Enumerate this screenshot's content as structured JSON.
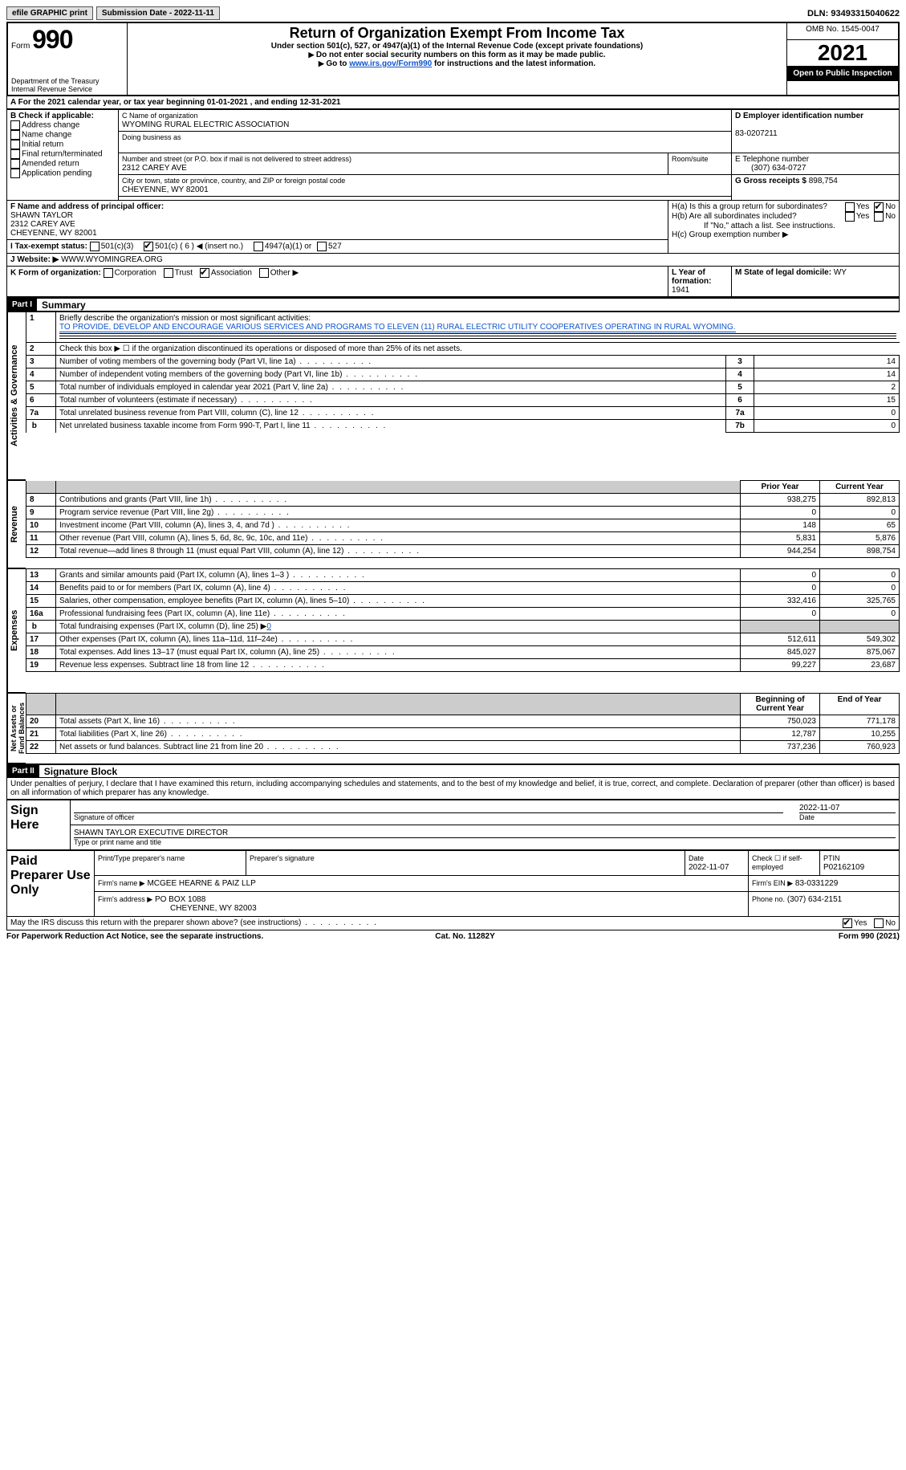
{
  "top": {
    "efile": "efile GRAPHIC print",
    "submission": "Submission Date - 2022-11-11",
    "dln": "DLN: 93493315040622"
  },
  "header": {
    "form_label": "Form",
    "form_num": "990",
    "dept": "Department of the Treasury\nInternal Revenue Service",
    "title": "Return of Organization Exempt From Income Tax",
    "sub1": "Under section 501(c), 527, or 4947(a)(1) of the Internal Revenue Code (except private foundations)",
    "sub2": "Do not enter social security numbers on this form as it may be made public.",
    "sub3_pre": "Go to ",
    "sub3_link": "www.irs.gov/Form990",
    "sub3_post": " for instructions and the latest information.",
    "omb": "OMB No. 1545-0047",
    "year": "2021",
    "open": "Open to Public Inspection"
  },
  "period": "For the 2021 calendar year, or tax year beginning 01-01-2021   , and ending 12-31-2021",
  "boxB": {
    "label": "B Check if applicable:",
    "items": [
      "Address change",
      "Name change",
      "Initial return",
      "Final return/terminated",
      "Amended return",
      "Application pending"
    ]
  },
  "boxC": {
    "label": "C Name of organization",
    "org": "WYOMING RURAL ELECTRIC ASSOCIATION",
    "dba_label": "Doing business as",
    "street_label": "Number and street (or P.O. box if mail is not delivered to street address)",
    "room_label": "Room/suite",
    "street": "2312 CAREY AVE",
    "city_label": "City or town, state or province, country, and ZIP or foreign postal code",
    "city": "CHEYENNE, WY  82001"
  },
  "boxD": {
    "label": "D Employer identification number",
    "ein": "83-0207211"
  },
  "boxE": {
    "label": "E Telephone number",
    "phone": "(307) 634-0727"
  },
  "boxG": {
    "label": "G Gross receipts $",
    "amount": "898,754"
  },
  "boxF": {
    "label": "F  Name and address of principal officer:",
    "name": "SHAWN TAYLOR",
    "street": "2312 CAREY AVE",
    "city": "CHEYENNE, WY  82001"
  },
  "boxH": {
    "a": "H(a)  Is this a group return for subordinates?",
    "b": "H(b)  Are all subordinates included?",
    "note": "If \"No,\" attach a list. See instructions.",
    "c": "H(c)  Group exemption number ▶"
  },
  "boxI": {
    "label": "I  Tax-exempt status:",
    "opt1": "501(c)(3)",
    "opt2": "501(c) ( 6 ) ◀ (insert no.)",
    "opt3": "4947(a)(1) or",
    "opt4": "527"
  },
  "boxJ": {
    "label": "J  Website: ▶",
    "value": "WWW.WYOMINGREA.ORG"
  },
  "boxK": {
    "label": "K Form of organization:",
    "opts": [
      "Corporation",
      "Trust",
      "Association",
      "Other ▶"
    ]
  },
  "boxL": {
    "label": "L Year of formation:",
    "value": "1941"
  },
  "boxM": {
    "label": "M State of legal domicile:",
    "value": "WY"
  },
  "partI": {
    "header": "Part I",
    "title": "Summary",
    "line1_label": "Briefly describe the organization's mission or most significant activities:",
    "line1_text": "TO PROVIDE, DEVELOP AND ENCOURAGE VARIOUS SERVICES AND PROGRAMS TO ELEVEN (11) RURAL ELECTRIC UTILITY COOPERATIVES OPERATING IN RURAL WYOMING.",
    "lines": {
      "2": "Check this box ▶ ☐  if the organization discontinued its operations or disposed of more than 25% of its net assets.",
      "3": "Number of voting members of the governing body (Part VI, line 1a)",
      "4": "Number of independent voting members of the governing body (Part VI, line 1b)",
      "5": "Total number of individuals employed in calendar year 2021 (Part V, line 2a)",
      "6": "Total number of volunteers (estimate if necessary)",
      "7a": "Total unrelated business revenue from Part VIII, column (C), line 12",
      "7b": "Net unrelated business taxable income from Form 990-T, Part I, line 11"
    },
    "vals": {
      "3": "14",
      "4": "14",
      "5": "2",
      "6": "15",
      "7a": "0",
      "7b": "0"
    },
    "rev_head_prior": "Prior Year",
    "rev_head_curr": "Current Year",
    "rev": [
      {
        "n": "8",
        "t": "Contributions and grants (Part VIII, line 1h)",
        "p": "938,275",
        "c": "892,813"
      },
      {
        "n": "9",
        "t": "Program service revenue (Part VIII, line 2g)",
        "p": "0",
        "c": "0"
      },
      {
        "n": "10",
        "t": "Investment income (Part VIII, column (A), lines 3, 4, and 7d )",
        "p": "148",
        "c": "65"
      },
      {
        "n": "11",
        "t": "Other revenue (Part VIII, column (A), lines 5, 6d, 8c, 9c, 10c, and 11e)",
        "p": "5,831",
        "c": "5,876"
      },
      {
        "n": "12",
        "t": "Total revenue—add lines 8 through 11 (must equal Part VIII, column (A), line 12)",
        "p": "944,254",
        "c": "898,754"
      }
    ],
    "exp": [
      {
        "n": "13",
        "t": "Grants and similar amounts paid (Part IX, column (A), lines 1–3 )",
        "p": "0",
        "c": "0"
      },
      {
        "n": "14",
        "t": "Benefits paid to or for members (Part IX, column (A), line 4)",
        "p": "0",
        "c": "0"
      },
      {
        "n": "15",
        "t": "Salaries, other compensation, employee benefits (Part IX, column (A), lines 5–10)",
        "p": "332,416",
        "c": "325,765"
      },
      {
        "n": "16a",
        "t": "Professional fundraising fees (Part IX, column (A), line 11e)",
        "p": "0",
        "c": "0"
      },
      {
        "n": "b",
        "t": "Total fundraising expenses (Part IX, column (D), line 25) ▶",
        "fund": "0",
        "shaded": true
      },
      {
        "n": "17",
        "t": "Other expenses (Part IX, column (A), lines 11a–11d, 11f–24e)",
        "p": "512,611",
        "c": "549,302"
      },
      {
        "n": "18",
        "t": "Total expenses. Add lines 13–17 (must equal Part IX, column (A), line 25)",
        "p": "845,027",
        "c": "875,067"
      },
      {
        "n": "19",
        "t": "Revenue less expenses. Subtract line 18 from line 12",
        "p": "99,227",
        "c": "23,687"
      }
    ],
    "na_head_begin": "Beginning of Current Year",
    "na_head_end": "End of Year",
    "na": [
      {
        "n": "20",
        "t": "Total assets (Part X, line 16)",
        "p": "750,023",
        "c": "771,178"
      },
      {
        "n": "21",
        "t": "Total liabilities (Part X, line 26)",
        "p": "12,787",
        "c": "10,255"
      },
      {
        "n": "22",
        "t": "Net assets or fund balances. Subtract line 21 from line 20",
        "p": "737,236",
        "c": "760,923"
      }
    ]
  },
  "partII": {
    "header": "Part II",
    "title": "Signature Block",
    "decl": "Under penalties of perjury, I declare that I have examined this return, including accompanying schedules and statements, and to the best of my knowledge and belief, it is true, correct, and complete. Declaration of preparer (other than officer) is based on all information of which preparer has any knowledge."
  },
  "sign": {
    "label": "Sign Here",
    "sig_officer": "Signature of officer",
    "date": "2022-11-07",
    "date_label": "Date",
    "name": "SHAWN TAYLOR  EXECUTIVE DIRECTOR",
    "name_label": "Type or print name and title"
  },
  "prep": {
    "label": "Paid Preparer Use Only",
    "print_label": "Print/Type preparer's name",
    "sig_label": "Preparer's signature",
    "date_label": "Date",
    "date": "2022-11-07",
    "self_emp": "Check ☐ if self-employed",
    "ptin_label": "PTIN",
    "ptin": "P02162109",
    "firm_label": "Firm's name    ▶",
    "firm": "MCGEE HEARNE & PAIZ LLP",
    "ein_label": "Firm's EIN ▶",
    "ein": "83-0331229",
    "addr_label": "Firm's address ▶",
    "addr1": "PO BOX 1088",
    "addr2": "CHEYENNE, WY  82003",
    "phone_label": "Phone no.",
    "phone": "(307) 634-2151"
  },
  "discuss": "May the IRS discuss this return with the preparer shown above? (see instructions)",
  "footer": {
    "left": "For Paperwork Reduction Act Notice, see the separate instructions.",
    "mid": "Cat. No. 11282Y",
    "right": "Form 990 (2021)"
  }
}
